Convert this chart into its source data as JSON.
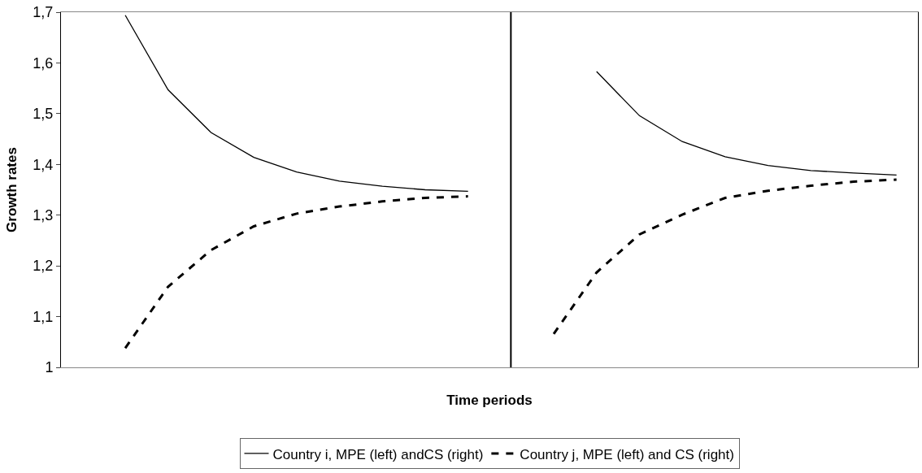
{
  "chart_data": {
    "type": "line",
    "xlabel": "Time periods",
    "ylabel": "Growth rates",
    "categories": [
      null,
      null,
      null,
      null,
      null,
      null,
      null,
      null,
      null,
      null,
      null,
      null,
      null,
      null,
      null,
      null,
      null,
      null,
      null,
      null
    ],
    "series": [
      {
        "name": "Country i, MPE (left) andCS (right)",
        "color": "#000000",
        "line_style": "solid",
        "values": [
          null,
          1.694,
          1.547,
          1.463,
          1.414,
          1.385,
          1.367,
          1.357,
          1.35,
          1.347,
          null,
          null,
          1.583,
          1.496,
          1.445,
          1.415,
          1.398,
          1.388,
          1.383,
          1.379
        ]
      },
      {
        "name": "Country j, MPE (left) and CS (right)",
        "color": "#000000",
        "line_style": "dashed",
        "values": [
          null,
          1.038,
          1.159,
          1.231,
          1.278,
          1.303,
          1.317,
          1.327,
          1.334,
          1.337,
          null,
          1.066,
          1.187,
          1.262,
          1.301,
          1.334,
          1.348,
          1.358,
          1.366,
          1.37
        ]
      }
    ],
    "ylim": [
      1,
      1.7
    ],
    "yticks": [
      1,
      {
        "value": 1.1,
        "label": "1,1"
      },
      {
        "value": 1.2,
        "label": "1,2"
      },
      {
        "value": 1.3,
        "label": "1,3"
      },
      {
        "value": 1.4,
        "label": "1,4"
      },
      {
        "value": 1.5,
        "label": "1,5"
      },
      {
        "value": 1.6,
        "label": "1,6"
      },
      {
        "value": 1.7,
        "label": "1,7"
      }
    ],
    "legend": "bottom",
    "marker": "none"
  }
}
